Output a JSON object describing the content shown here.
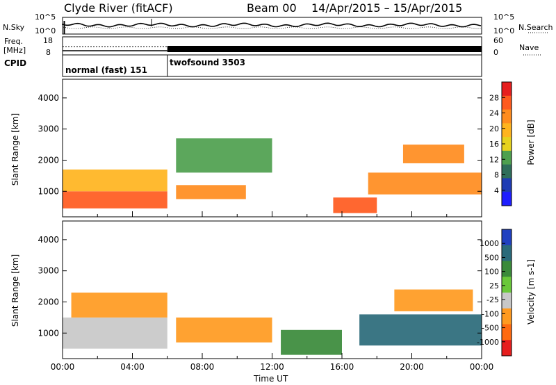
{
  "header": {
    "station": "Clyde River (fitACF)",
    "beam": "Beam 00",
    "date_range": "14/Apr/2015 – 15/Apr/2015"
  },
  "summary_panel": {
    "nsky_label": "N.Sky",
    "nsearch_label": "N.Search",
    "freq_label": "Freq.",
    "freq_unit": "[MHz]",
    "nave_label": "Nave",
    "cpid_label": "CPID",
    "noise_ticks": [
      "10^5",
      "10^0"
    ],
    "freq_ticks": [
      "18",
      "8"
    ],
    "nave_ticks": [
      "60",
      "0"
    ],
    "cpid_modes": [
      {
        "name": "normal (fast) 151",
        "start_hour": 0,
        "end_hour": 6
      },
      {
        "name": "twofsound 3503",
        "start_hour": 6,
        "end_hour": 24
      }
    ]
  },
  "chart_data": [
    {
      "type": "heatmap",
      "name": "power",
      "ylabel": "Slant Range [km]",
      "xlabel": "",
      "xlim_hours": [
        0,
        24
      ],
      "ylim_km": [
        180,
        4600
      ],
      "yticks": [
        1000,
        2000,
        3000,
        4000
      ],
      "colorbar": {
        "label": "Power [dB]",
        "ticks": [
          "28",
          "24",
          "20",
          "16",
          "12",
          "8",
          "4"
        ],
        "colors": [
          "#e61e1e",
          "#ff5a1e",
          "#ff8c1e",
          "#ffb41e",
          "#e6d21e",
          "#4ea04e",
          "#2e6e5a",
          "#1e3cb4",
          "#1e1eff"
        ]
      },
      "echo_bands": [
        {
          "t0": 0.0,
          "t1": 6.0,
          "r0": 450,
          "r1": 1000,
          "value": 26
        },
        {
          "t0": 0.0,
          "t1": 6.0,
          "r0": 1000,
          "r1": 1700,
          "value": 18
        },
        {
          "t0": 6.5,
          "t1": 10.5,
          "r0": 750,
          "r1": 1200,
          "value": 22
        },
        {
          "t0": 6.5,
          "t1": 12.0,
          "r0": 1600,
          "r1": 2700,
          "value": 10
        },
        {
          "t0": 15.5,
          "t1": 18.0,
          "r0": 300,
          "r1": 800,
          "value": 26
        },
        {
          "t0": 17.5,
          "t1": 24.0,
          "r0": 900,
          "r1": 1600,
          "value": 22
        },
        {
          "t0": 19.5,
          "t1": 23.0,
          "r0": 1900,
          "r1": 2500,
          "value": 20
        }
      ]
    },
    {
      "type": "heatmap",
      "name": "velocity",
      "ylabel": "Slant Range [km]",
      "xlabel": "Time UT",
      "xlim_hours": [
        0,
        24
      ],
      "ylim_km": [
        180,
        4600
      ],
      "yticks": [
        1000,
        2000,
        3000,
        4000
      ],
      "xticks": [
        "00:00",
        "04:00",
        "08:00",
        "12:00",
        "16:00",
        "20:00",
        "00:00"
      ],
      "colorbar": {
        "label": "Velocity [m s-1]",
        "ticks": [
          "1000",
          "500",
          "100",
          "25",
          "-25",
          "-100",
          "-500",
          "-1000"
        ],
        "colors": [
          "#2040c0",
          "#2a6a7a",
          "#3a8a3a",
          "#6ac83a",
          "#c8c8c8",
          "#ff9a20",
          "#ff6a10",
          "#e61e1e"
        ]
      },
      "echo_bands": [
        {
          "t0": 0.0,
          "t1": 6.0,
          "r0": 500,
          "r1": 1500,
          "value": -25
        },
        {
          "t0": 0.5,
          "t1": 6.0,
          "r0": 1500,
          "r1": 2300,
          "value": -100
        },
        {
          "t0": 6.5,
          "t1": 12.0,
          "r0": 700,
          "r1": 1500,
          "value": -100
        },
        {
          "t0": 12.5,
          "t1": 16.0,
          "r0": 300,
          "r1": 1100,
          "value": 100
        },
        {
          "t0": 17.0,
          "t1": 24.0,
          "r0": 600,
          "r1": 1600,
          "value": 500
        },
        {
          "t0": 19.0,
          "t1": 23.5,
          "r0": 1700,
          "r1": 2400,
          "value": -100
        }
      ]
    }
  ]
}
